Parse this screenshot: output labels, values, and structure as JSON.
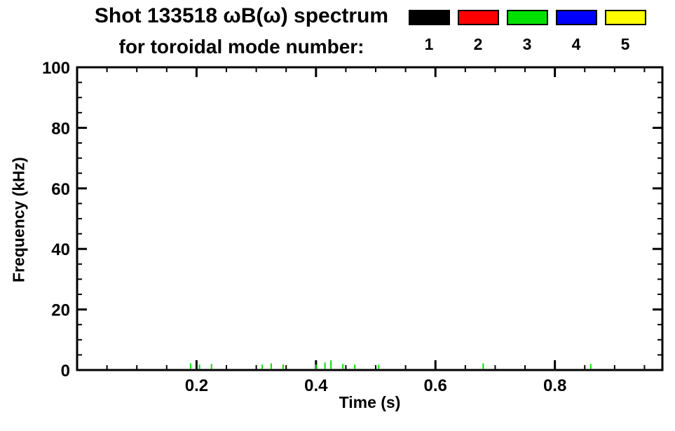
{
  "header": {
    "title_line1": "Shot 133518 ωB(ω) spectrum",
    "title_line2": "for toroidal mode number:"
  },
  "legend": {
    "entries": [
      {
        "label": "1",
        "color": "#000000"
      },
      {
        "label": "2",
        "color": "#ff0000"
      },
      {
        "label": "3",
        "color": "#00e100"
      },
      {
        "label": "4",
        "color": "#0000ff"
      },
      {
        "label": "5",
        "color": "#ffff00"
      }
    ]
  },
  "chart_data": {
    "type": "scatter",
    "title": "Shot 133518 ωB(ω) spectrum for toroidal mode number: 1 2 3 4 5",
    "xlabel": "Time (s)",
    "ylabel": "Frequency (kHz)",
    "xlim": [
      0.0,
      0.98
    ],
    "ylim": [
      0,
      100
    ],
    "xticks": [
      0.2,
      0.4,
      0.6,
      0.8
    ],
    "xtick_labels": [
      "0.2",
      "0.4",
      "0.6",
      "0.8"
    ],
    "x_minor_interval": 0.05,
    "yticks": [
      0,
      20,
      40,
      60,
      80,
      100
    ],
    "ytick_labels": [
      "0",
      "20",
      "40",
      "60",
      "80",
      "100"
    ],
    "y_minor_interval": 5,
    "grid": false,
    "legend_position": "top-right",
    "point_format": "[time_s, freq_min_khz, freq_max_khz]",
    "series": [
      {
        "name": "mode 1",
        "color": "#000000",
        "points": []
      },
      {
        "name": "mode 2",
        "color": "#ff0000",
        "points": []
      },
      {
        "name": "mode 3",
        "color": "#00e100",
        "points": [
          [
            0.19,
            0.3,
            2.2
          ],
          [
            0.205,
            0.3,
            1.8
          ],
          [
            0.225,
            0.3,
            2.0
          ],
          [
            0.31,
            0.3,
            1.8
          ],
          [
            0.325,
            0.3,
            2.2
          ],
          [
            0.345,
            0.3,
            1.8
          ],
          [
            0.4,
            0.3,
            1.8
          ],
          [
            0.415,
            0.3,
            2.5
          ],
          [
            0.425,
            0.3,
            3.2
          ],
          [
            0.445,
            0.3,
            2.0
          ],
          [
            0.465,
            0.3,
            1.8
          ],
          [
            0.505,
            0.3,
            1.8
          ],
          [
            0.68,
            0.3,
            2.2
          ],
          [
            0.86,
            0.3,
            2.0
          ]
        ]
      },
      {
        "name": "mode 4",
        "color": "#0000ff",
        "points": []
      },
      {
        "name": "mode 5",
        "color": "#ffff00",
        "points": []
      }
    ]
  }
}
